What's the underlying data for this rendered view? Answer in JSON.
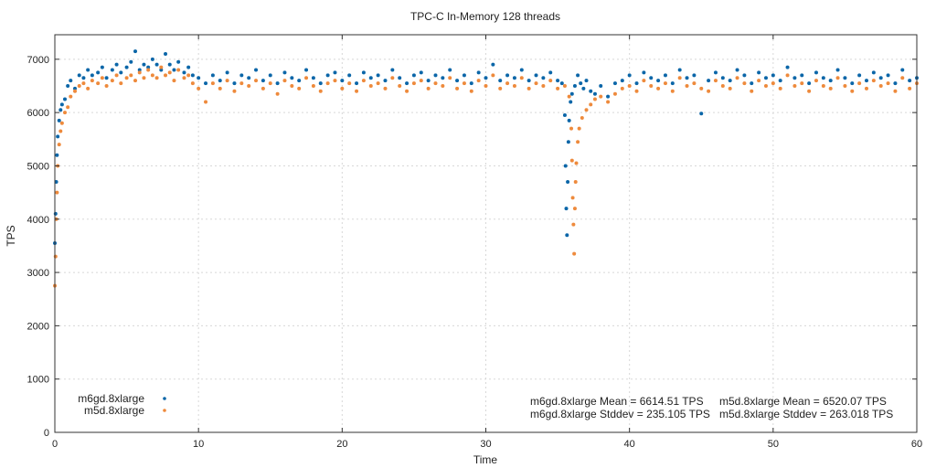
{
  "chart_data": {
    "type": "scatter",
    "title": "TPC-C In-Memory 128 threads",
    "xlabel": "Time",
    "ylabel": "TPS",
    "xlim": [
      0,
      60
    ],
    "ylim": [
      0,
      7460
    ],
    "xticks": [
      0,
      10,
      20,
      30,
      40,
      50,
      60
    ],
    "yticks": [
      0,
      1000,
      2000,
      3000,
      4000,
      5000,
      6000,
      7000
    ],
    "grid": true,
    "legend_placement": "bottom-left",
    "annotations": [
      "m6gd.8xlarge Mean = 6614.51 TPS",
      "m6gd.8xlarge Stddev = 235.105 TPS",
      "m5d.8xlarge Mean = 6520.07 TPS",
      "m5d.8xlarge Stddev = 263.018 TPS"
    ],
    "series": [
      {
        "name": "m6gd.8xlarge",
        "color": "#0b66a8",
        "points": [
          [
            0,
            3550
          ],
          [
            0.05,
            4100
          ],
          [
            0.1,
            4700
          ],
          [
            0.15,
            5200
          ],
          [
            0.2,
            5550
          ],
          [
            0.3,
            5850
          ],
          [
            0.4,
            6050
          ],
          [
            0.5,
            6150
          ],
          [
            0.7,
            6250
          ],
          [
            0.9,
            6500
          ],
          [
            1.1,
            6600
          ],
          [
            1.4,
            6450
          ],
          [
            1.7,
            6700
          ],
          [
            2,
            6650
          ],
          [
            2.3,
            6800
          ],
          [
            2.6,
            6700
          ],
          [
            3,
            6750
          ],
          [
            3.3,
            6850
          ],
          [
            3.6,
            6650
          ],
          [
            4,
            6800
          ],
          [
            4.3,
            6900
          ],
          [
            4.6,
            6750
          ],
          [
            5,
            6850
          ],
          [
            5.3,
            6950
          ],
          [
            5.6,
            7150
          ],
          [
            5.9,
            6800
          ],
          [
            6.2,
            6900
          ],
          [
            6.5,
            6850
          ],
          [
            6.8,
            7000
          ],
          [
            7.1,
            6900
          ],
          [
            7.4,
            6800
          ],
          [
            7.7,
            7100
          ],
          [
            8,
            6900
          ],
          [
            8.3,
            6800
          ],
          [
            8.6,
            6950
          ],
          [
            9,
            6750
          ],
          [
            9.3,
            6850
          ],
          [
            9.6,
            6700
          ],
          [
            10,
            6650
          ],
          [
            10.5,
            6550
          ],
          [
            11,
            6700
          ],
          [
            11.5,
            6600
          ],
          [
            12,
            6750
          ],
          [
            12.5,
            6550
          ],
          [
            13,
            6700
          ],
          [
            13.5,
            6650
          ],
          [
            14,
            6800
          ],
          [
            14.5,
            6600
          ],
          [
            15,
            6700
          ],
          [
            15.5,
            6550
          ],
          [
            16,
            6750
          ],
          [
            16.5,
            6650
          ],
          [
            17,
            6600
          ],
          [
            17.5,
            6800
          ],
          [
            18,
            6650
          ],
          [
            18.5,
            6550
          ],
          [
            19,
            6700
          ],
          [
            19.5,
            6750
          ],
          [
            20,
            6600
          ],
          [
            20.5,
            6700
          ],
          [
            21,
            6550
          ],
          [
            21.5,
            6750
          ],
          [
            22,
            6650
          ],
          [
            22.5,
            6700
          ],
          [
            23,
            6600
          ],
          [
            23.5,
            6800
          ],
          [
            24,
            6650
          ],
          [
            24.5,
            6550
          ],
          [
            25,
            6700
          ],
          [
            25.5,
            6750
          ],
          [
            26,
            6600
          ],
          [
            26.5,
            6700
          ],
          [
            27,
            6650
          ],
          [
            27.5,
            6800
          ],
          [
            28,
            6600
          ],
          [
            28.5,
            6700
          ],
          [
            29,
            6550
          ],
          [
            29.5,
            6750
          ],
          [
            30,
            6650
          ],
          [
            30.5,
            6900
          ],
          [
            31,
            6600
          ],
          [
            31.5,
            6700
          ],
          [
            32,
            6650
          ],
          [
            32.5,
            6800
          ],
          [
            33,
            6600
          ],
          [
            33.5,
            6700
          ],
          [
            34,
            6650
          ],
          [
            34.5,
            6750
          ],
          [
            35,
            6600
          ],
          [
            35.3,
            6550
          ],
          [
            35.5,
            5950
          ],
          [
            35.55,
            5000
          ],
          [
            35.6,
            4200
          ],
          [
            35.65,
            3700
          ],
          [
            35.7,
            4700
          ],
          [
            35.75,
            5450
          ],
          [
            35.8,
            5850
          ],
          [
            35.9,
            6200
          ],
          [
            36,
            6350
          ],
          [
            36.2,
            6500
          ],
          [
            36.4,
            6700
          ],
          [
            36.6,
            6550
          ],
          [
            36.8,
            6450
          ],
          [
            37,
            6600
          ],
          [
            37.3,
            6400
          ],
          [
            37.6,
            6350
          ],
          [
            38,
            6500
          ],
          [
            38.5,
            6300
          ],
          [
            39,
            6550
          ],
          [
            39.5,
            6600
          ],
          [
            40,
            6700
          ],
          [
            40.5,
            6550
          ],
          [
            41,
            6750
          ],
          [
            41.5,
            6650
          ],
          [
            42,
            6600
          ],
          [
            42.5,
            6700
          ],
          [
            43,
            6550
          ],
          [
            43.5,
            6800
          ],
          [
            44,
            6650
          ],
          [
            44.5,
            6700
          ],
          [
            45,
            5980
          ],
          [
            45.5,
            6600
          ],
          [
            46,
            6750
          ],
          [
            46.5,
            6650
          ],
          [
            47,
            6600
          ],
          [
            47.5,
            6800
          ],
          [
            48,
            6700
          ],
          [
            48.5,
            6550
          ],
          [
            49,
            6750
          ],
          [
            49.5,
            6650
          ],
          [
            50,
            6700
          ],
          [
            50.5,
            6600
          ],
          [
            51,
            6850
          ],
          [
            51.5,
            6650
          ],
          [
            52,
            6700
          ],
          [
            52.5,
            6550
          ],
          [
            53,
            6750
          ],
          [
            53.5,
            6650
          ],
          [
            54,
            6600
          ],
          [
            54.5,
            6800
          ],
          [
            55,
            6650
          ],
          [
            55.5,
            6550
          ],
          [
            56,
            6700
          ],
          [
            56.5,
            6600
          ],
          [
            57,
            6750
          ],
          [
            57.5,
            6650
          ],
          [
            58,
            6700
          ],
          [
            58.5,
            6550
          ],
          [
            59,
            6800
          ],
          [
            59.5,
            6600
          ],
          [
            60,
            6650
          ]
        ]
      },
      {
        "name": "m5d.8xlarge",
        "color": "#ee8a3c",
        "points": [
          [
            0,
            2750
          ],
          [
            0.05,
            3300
          ],
          [
            0.1,
            4000
          ],
          [
            0.15,
            4500
          ],
          [
            0.2,
            5000
          ],
          [
            0.3,
            5400
          ],
          [
            0.4,
            5650
          ],
          [
            0.5,
            5800
          ],
          [
            0.7,
            6000
          ],
          [
            0.9,
            6100
          ],
          [
            1.1,
            6300
          ],
          [
            1.4,
            6400
          ],
          [
            1.7,
            6500
          ],
          [
            2,
            6550
          ],
          [
            2.3,
            6450
          ],
          [
            2.6,
            6600
          ],
          [
            3,
            6550
          ],
          [
            3.3,
            6650
          ],
          [
            3.6,
            6500
          ],
          [
            4,
            6600
          ],
          [
            4.3,
            6700
          ],
          [
            4.6,
            6550
          ],
          [
            5,
            6650
          ],
          [
            5.3,
            6700
          ],
          [
            5.6,
            6600
          ],
          [
            5.9,
            6750
          ],
          [
            6.2,
            6650
          ],
          [
            6.5,
            6800
          ],
          [
            6.8,
            6700
          ],
          [
            7.1,
            6650
          ],
          [
            7.4,
            6850
          ],
          [
            7.7,
            6700
          ],
          [
            8,
            6750
          ],
          [
            8.3,
            6600
          ],
          [
            8.6,
            6800
          ],
          [
            9,
            6650
          ],
          [
            9.3,
            6700
          ],
          [
            9.6,
            6550
          ],
          [
            10,
            6450
          ],
          [
            10.5,
            6200
          ],
          [
            11,
            6550
          ],
          [
            11.5,
            6450
          ],
          [
            12,
            6600
          ],
          [
            12.5,
            6400
          ],
          [
            13,
            6550
          ],
          [
            13.5,
            6500
          ],
          [
            14,
            6600
          ],
          [
            14.5,
            6450
          ],
          [
            15,
            6550
          ],
          [
            15.5,
            6350
          ],
          [
            16,
            6600
          ],
          [
            16.5,
            6500
          ],
          [
            17,
            6450
          ],
          [
            17.5,
            6650
          ],
          [
            18,
            6500
          ],
          [
            18.5,
            6400
          ],
          [
            19,
            6550
          ],
          [
            19.5,
            6600
          ],
          [
            20,
            6450
          ],
          [
            20.5,
            6550
          ],
          [
            21,
            6400
          ],
          [
            21.5,
            6600
          ],
          [
            22,
            6500
          ],
          [
            22.5,
            6550
          ],
          [
            23,
            6450
          ],
          [
            23.5,
            6650
          ],
          [
            24,
            6500
          ],
          [
            24.5,
            6400
          ],
          [
            25,
            6550
          ],
          [
            25.5,
            6600
          ],
          [
            26,
            6450
          ],
          [
            26.5,
            6550
          ],
          [
            27,
            6500
          ],
          [
            27.5,
            6650
          ],
          [
            28,
            6450
          ],
          [
            28.5,
            6550
          ],
          [
            29,
            6400
          ],
          [
            29.5,
            6600
          ],
          [
            30,
            6500
          ],
          [
            30.5,
            6700
          ],
          [
            31,
            6450
          ],
          [
            31.5,
            6550
          ],
          [
            32,
            6500
          ],
          [
            32.5,
            6650
          ],
          [
            33,
            6450
          ],
          [
            33.5,
            6550
          ],
          [
            34,
            6500
          ],
          [
            34.5,
            6600
          ],
          [
            35,
            6450
          ],
          [
            35.5,
            6500
          ],
          [
            35.8,
            6300
          ],
          [
            35.95,
            5700
          ],
          [
            36,
            5100
          ],
          [
            36.05,
            4400
          ],
          [
            36.1,
            3900
          ],
          [
            36.15,
            3350
          ],
          [
            36.2,
            4200
          ],
          [
            36.25,
            4700
          ],
          [
            36.3,
            5050
          ],
          [
            36.4,
            5450
          ],
          [
            36.5,
            5700
          ],
          [
            36.7,
            5900
          ],
          [
            37,
            6050
          ],
          [
            37.3,
            6150
          ],
          [
            37.6,
            6250
          ],
          [
            38,
            6300
          ],
          [
            38.5,
            6200
          ],
          [
            39,
            6350
          ],
          [
            39.5,
            6450
          ],
          [
            40,
            6500
          ],
          [
            40.5,
            6400
          ],
          [
            41,
            6600
          ],
          [
            41.5,
            6500
          ],
          [
            42,
            6450
          ],
          [
            42.5,
            6550
          ],
          [
            43,
            6400
          ],
          [
            43.5,
            6650
          ],
          [
            44,
            6500
          ],
          [
            44.5,
            6550
          ],
          [
            45,
            6450
          ],
          [
            45.5,
            6400
          ],
          [
            46,
            6600
          ],
          [
            46.5,
            6500
          ],
          [
            47,
            6450
          ],
          [
            47.5,
            6650
          ],
          [
            48,
            6550
          ],
          [
            48.5,
            6400
          ],
          [
            49,
            6600
          ],
          [
            49.5,
            6500
          ],
          [
            50,
            6550
          ],
          [
            50.5,
            6450
          ],
          [
            51,
            6700
          ],
          [
            51.5,
            6500
          ],
          [
            52,
            6550
          ],
          [
            52.5,
            6400
          ],
          [
            53,
            6600
          ],
          [
            53.5,
            6500
          ],
          [
            54,
            6450
          ],
          [
            54.5,
            6650
          ],
          [
            55,
            6500
          ],
          [
            55.5,
            6400
          ],
          [
            56,
            6550
          ],
          [
            56.5,
            6450
          ],
          [
            57,
            6600
          ],
          [
            57.5,
            6500
          ],
          [
            58,
            6550
          ],
          [
            58.5,
            6400
          ],
          [
            59,
            6650
          ],
          [
            59.5,
            6450
          ],
          [
            60,
            6550
          ]
        ]
      }
    ]
  }
}
